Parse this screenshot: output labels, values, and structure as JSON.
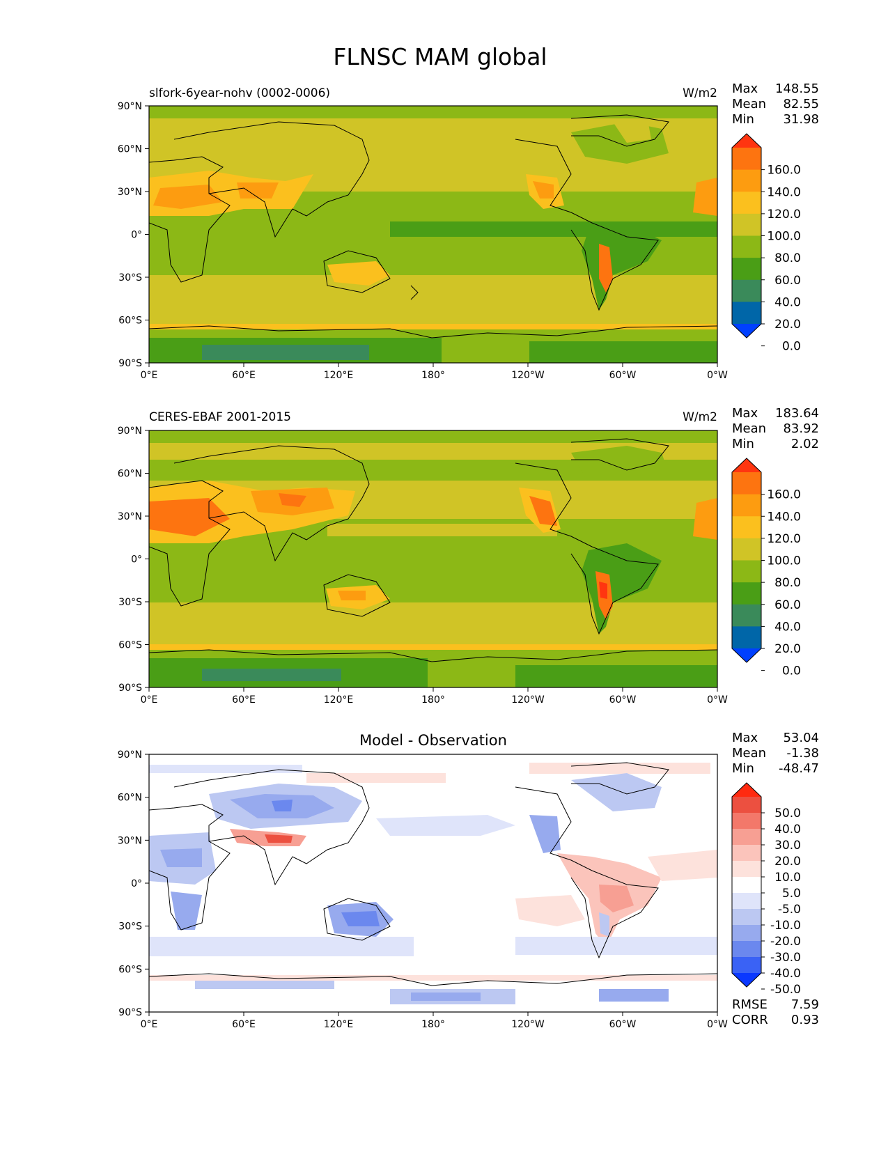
{
  "figure_title": "FLNSC MAM global",
  "stats_labels": {
    "max": "Max",
    "mean": "Mean",
    "min": "Min",
    "rmse": "RMSE",
    "corr": "CORR"
  },
  "axes": {
    "lat_ticks": [
      "90°N",
      "60°N",
      "30°N",
      "0°",
      "30°S",
      "60°S",
      "90°S"
    ],
    "lon_ticks": [
      "0°E",
      "60°E",
      "120°E",
      "180°",
      "120°W",
      "60°W",
      "0°W"
    ]
  },
  "colors": {
    "abs_levels": [
      "#0040ff",
      "#0066a8",
      "#3a8a5a",
      "#4a9e16",
      "#8cb816",
      "#d0c426",
      "#fbc01e",
      "#fd9c10",
      "#fd7410",
      "#ff3510"
    ],
    "diff_levels": [
      "#0a38ff",
      "#3a62f5",
      "#6b88ee",
      "#97aaee",
      "#bcc8f2",
      "#dfe4fa",
      "#ffffff",
      "#fde2dc",
      "#fbc4bb",
      "#f79f93",
      "#f3786a",
      "#ec5040",
      "#ff2a10"
    ]
  },
  "chart_data": [
    {
      "type": "heatmap",
      "title_left": "slfork-6year-nohv (0002-0006)",
      "units": "W/m2",
      "stats": {
        "max": "148.55",
        "mean": "82.55",
        "min": "31.98"
      },
      "colorbar_labels": [
        "160.0",
        "140.0",
        "120.0",
        "100.0",
        "80.0",
        "60.0",
        "40.0",
        "20.0",
        "0.0"
      ],
      "xlim": [
        0,
        360
      ],
      "ylim": [
        -90,
        90
      ]
    },
    {
      "type": "heatmap",
      "title_left": "CERES-EBAF 2001-2015",
      "units": "W/m2",
      "stats": {
        "max": "183.64",
        "mean": "83.92",
        "min": "2.02"
      },
      "colorbar_labels": [
        "160.0",
        "140.0",
        "120.0",
        "100.0",
        "80.0",
        "60.0",
        "40.0",
        "20.0",
        "0.0"
      ],
      "xlim": [
        0,
        360
      ],
      "ylim": [
        -90,
        90
      ]
    },
    {
      "type": "heatmap",
      "title_center": "Model - Observation",
      "stats": {
        "max": "53.04",
        "mean": "-1.38",
        "min": "-48.47",
        "rmse": "7.59",
        "corr": "0.93"
      },
      "colorbar_labels": [
        "50.0",
        "40.0",
        "30.0",
        "20.0",
        "10.0",
        "5.0",
        "-5.0",
        "-10.0",
        "-20.0",
        "-30.0",
        "-40.0",
        "-50.0"
      ],
      "xlim": [
        0,
        360
      ],
      "ylim": [
        -90,
        90
      ]
    }
  ]
}
